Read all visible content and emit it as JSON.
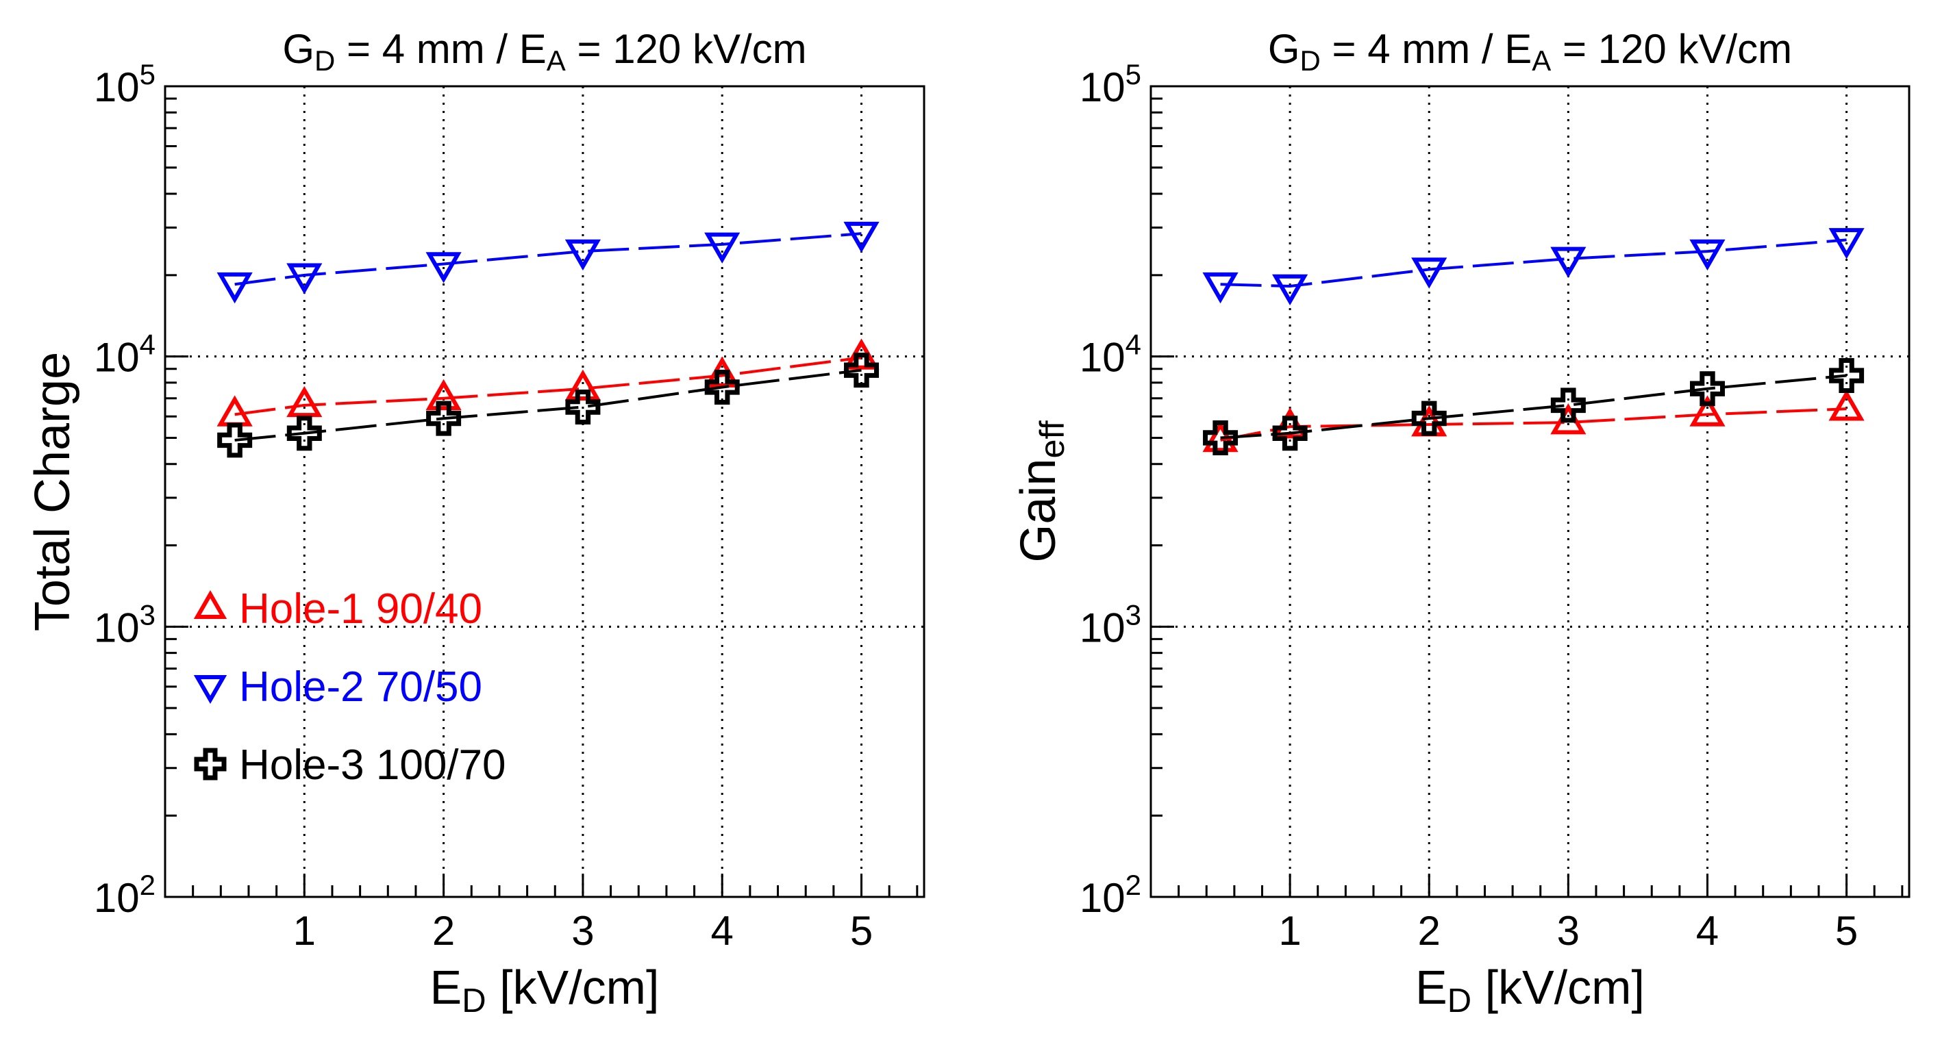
{
  "chart_data": [
    {
      "type": "line",
      "title": {
        "parts": [
          {
            "text": "G",
            "sub": false
          },
          {
            "text": "D",
            "sub": true
          },
          {
            "text": " = 4 mm / E",
            "sub": false
          },
          {
            "text": "A",
            "sub": true
          },
          {
            "text": " = 120 kV/cm",
            "sub": false
          }
        ]
      },
      "xlabel": {
        "parts": [
          {
            "text": "E",
            "sub": false
          },
          {
            "text": "D",
            "sub": true
          },
          {
            "text": " [kV/cm]",
            "sub": false
          }
        ]
      },
      "ylabel": {
        "parts": [
          {
            "text": "Total Charge",
            "sub": false
          }
        ]
      },
      "xlim": [
        0,
        5.45
      ],
      "ylim": [
        100,
        100000
      ],
      "yscale": "log",
      "xticks": [
        1,
        2,
        3,
        4,
        5
      ],
      "xtick_labels": [
        "1",
        "2",
        "3",
        "4",
        "5"
      ],
      "yticks": [
        {
          "value": 100,
          "base": "10",
          "exp": "2"
        },
        {
          "value": 1000,
          "base": "10",
          "exp": "3"
        },
        {
          "value": 10000,
          "base": "10",
          "exp": "4"
        },
        {
          "value": 100000,
          "base": "10",
          "exp": "5"
        }
      ],
      "grid": true,
      "legend_position": "lower-left",
      "series": [
        {
          "name": "Hole-1 90/40",
          "color": "#ff0000",
          "marker": "triangle-up",
          "x": [
            0.5,
            1,
            2,
            3,
            4,
            5
          ],
          "y": [
            6100,
            6600,
            7000,
            7600,
            8500,
            9900
          ]
        },
        {
          "name": "Hole-2 70/50",
          "color": "#0000ff",
          "marker": "triangle-down",
          "x": [
            0.5,
            1,
            2,
            3,
            4,
            5
          ],
          "y": [
            18500,
            20000,
            22000,
            24500,
            26000,
            28500
          ]
        },
        {
          "name": "Hole-3 100/70",
          "color": "#000000",
          "marker": "open-cross",
          "x": [
            0.5,
            1,
            2,
            3,
            4,
            5
          ],
          "y": [
            4900,
            5200,
            5900,
            6500,
            7700,
            8900
          ]
        }
      ]
    },
    {
      "type": "line",
      "title": {
        "parts": [
          {
            "text": "G",
            "sub": false
          },
          {
            "text": "D",
            "sub": true
          },
          {
            "text": " = 4 mm / E",
            "sub": false
          },
          {
            "text": "A",
            "sub": true
          },
          {
            "text": " = 120 kV/cm",
            "sub": false
          }
        ]
      },
      "xlabel": {
        "parts": [
          {
            "text": "E",
            "sub": false
          },
          {
            "text": "D",
            "sub": true
          },
          {
            "text": " [kV/cm]",
            "sub": false
          }
        ]
      },
      "ylabel": {
        "parts": [
          {
            "text": "Gain",
            "sub": false
          },
          {
            "text": "eff",
            "sub": true
          }
        ]
      },
      "xlim": [
        0,
        5.45
      ],
      "ylim": [
        100,
        100000
      ],
      "yscale": "log",
      "xticks": [
        1,
        2,
        3,
        4,
        5
      ],
      "xtick_labels": [
        "1",
        "2",
        "3",
        "4",
        "5"
      ],
      "yticks": [
        {
          "value": 100,
          "base": "10",
          "exp": "2"
        },
        {
          "value": 1000,
          "base": "10",
          "exp": "3"
        },
        {
          "value": 10000,
          "base": "10",
          "exp": "4"
        },
        {
          "value": 100000,
          "base": "10",
          "exp": "5"
        }
      ],
      "grid": true,
      "legend_position": "none",
      "series": [
        {
          "name": "Hole-1 90/40",
          "color": "#ff0000",
          "marker": "triangle-up",
          "x": [
            0.5,
            1,
            2,
            3,
            4,
            5
          ],
          "y": [
            4900,
            5500,
            5600,
            5700,
            6100,
            6400
          ]
        },
        {
          "name": "Hole-2 70/50",
          "color": "#0000ff",
          "marker": "triangle-down",
          "x": [
            0.5,
            1,
            2,
            3,
            4,
            5
          ],
          "y": [
            18500,
            18200,
            21000,
            23000,
            24500,
            27000
          ]
        },
        {
          "name": "Hole-3 100/70",
          "color": "#000000",
          "marker": "open-cross",
          "x": [
            0.5,
            1,
            2,
            3,
            4,
            5
          ],
          "y": [
            5000,
            5200,
            5900,
            6600,
            7600,
            8500
          ]
        }
      ]
    }
  ]
}
